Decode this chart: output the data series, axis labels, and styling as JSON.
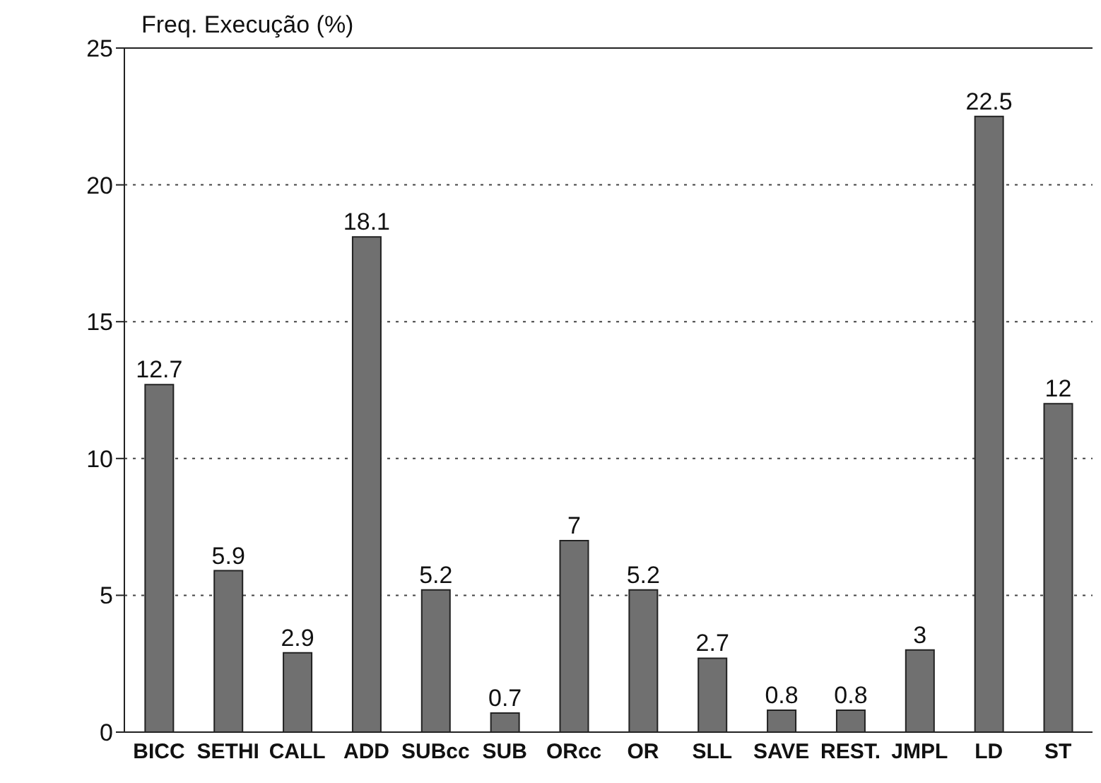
{
  "chart_data": {
    "type": "bar",
    "ylabel": "Freq. Execução (%)",
    "categories": [
      "BICC",
      "SETHI",
      "CALL",
      "ADD",
      "SUBcc",
      "SUB",
      "ORcc",
      "OR",
      "SLL",
      "SAVE",
      "REST.",
      "JMPL",
      "LD",
      "ST"
    ],
    "values": [
      12.7,
      5.9,
      2.9,
      18.1,
      5.2,
      0.7,
      7,
      5.2,
      2.7,
      0.8,
      0.8,
      3,
      22.5,
      12
    ],
    "color": "#707070",
    "ylim": [
      0,
      25
    ],
    "yticks": [
      0,
      5,
      10,
      15,
      20,
      25
    ],
    "grid": "y",
    "line_style": "dotted",
    "data_labels": true
  }
}
